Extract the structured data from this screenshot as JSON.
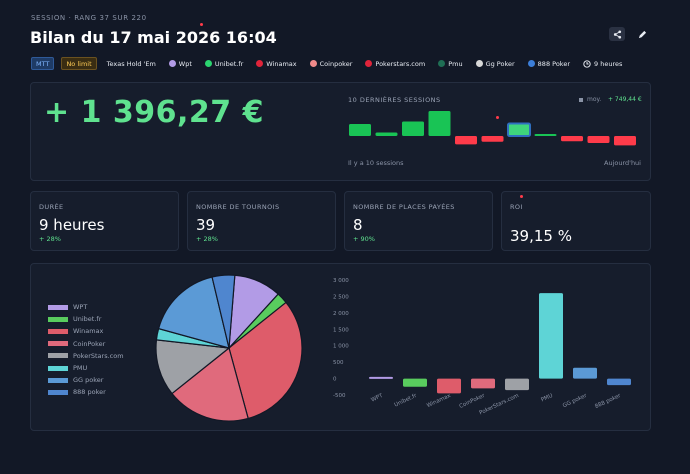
{
  "header": {
    "kicker": "SESSION · RANG 37 SUR 220",
    "title": "Bilan du 17 mai 2026 16:04"
  },
  "tags": {
    "mtt": "MTT",
    "nolimit": "No limit",
    "game": "Texas Hold 'Em",
    "rooms": [
      {
        "label": "Wpt",
        "color": "#b29be6"
      },
      {
        "label": "Unibet.fr",
        "color": "#2bd46f"
      },
      {
        "label": "Winamax",
        "color": "#e0243a"
      },
      {
        "label": "Coinpoker",
        "color": "#f08a8a"
      },
      {
        "label": "Pokerstars.com",
        "color": "#e0243a"
      },
      {
        "label": "Pmu",
        "color": "#1f6e54"
      },
      {
        "label": "Gg Poker",
        "color": "#d8d8d8"
      },
      {
        "label": "888 Poker",
        "color": "#3c7ed8"
      }
    ],
    "duration": "9 heures"
  },
  "summary": {
    "result": "+ 1 396,27 €",
    "sessions_label": "10 DERNIÈRES SESSIONS",
    "avg_label": "moy.",
    "avg_value": "+ 749,44 €",
    "foot_left": "Il y a 10 sessions",
    "foot_right": "Aujourd'hui",
    "bars": [
      {
        "value": 0.48,
        "color": "#19c455"
      },
      {
        "value": 0.14,
        "color": "#19c455"
      },
      {
        "value": 0.58,
        "color": "#19c455"
      },
      {
        "value": 1.0,
        "color": "#19c455"
      },
      {
        "value": -0.42,
        "color": "#ff3b4a"
      },
      {
        "value": -0.29,
        "color": "#ff3b4a"
      },
      {
        "value": 0.5,
        "color": "#3fd57c",
        "current": true
      },
      {
        "value": 0.05,
        "color": "#19c455"
      },
      {
        "value": -0.26,
        "color": "#ff3b4a"
      },
      {
        "value": -0.35,
        "color": "#ff3b4a"
      },
      {
        "value": -0.47,
        "color": "#ff3b4a"
      }
    ]
  },
  "stats": [
    {
      "label": "DURÉE",
      "value": "9 heures",
      "delta": "+ 28%"
    },
    {
      "label": "NOMBRE DE TOURNOIS",
      "value": "39",
      "delta": "+ 28%"
    },
    {
      "label": "NOMBRE DE PLACES PAYÉES",
      "value": "8",
      "delta": "+ 90%"
    },
    {
      "label": "ROI",
      "value": "39,15 %",
      "delta": ""
    }
  ],
  "chart_data": [
    {
      "type": "pie",
      "categories": [
        "WPT",
        "Unibet.fr",
        "Winamax",
        "CoinPoker",
        "PokerStars.com",
        "PMU",
        "GG poker",
        "888 poker"
      ],
      "values": [
        10.5,
        2.5,
        31.5,
        18.5,
        12.5,
        2.5,
        17.0,
        5.0
      ],
      "colors": [
        "#b29be6",
        "#59cc5e",
        "#de5c6a",
        "#e06a7c",
        "#9ea1a6",
        "#5ed4d6",
        "#5b9ad6",
        "#4f86cf"
      ],
      "legend": "left"
    },
    {
      "type": "bar",
      "categories": [
        "WPT",
        "Unibet.fr",
        "Winamax",
        "CoinPoker",
        "PokerStars.com",
        "PMU",
        "GG poker",
        "888 poker"
      ],
      "values": [
        50,
        -250,
        -450,
        -300,
        -350,
        2600,
        330,
        -200
      ],
      "colors": [
        "#b29be6",
        "#59cc5e",
        "#de5c6a",
        "#e06a7c",
        "#9ea1a6",
        "#5ed4d6",
        "#5b9ad6",
        "#4f86cf"
      ],
      "yticks": [
        "3 000",
        "2 500",
        "2 000",
        "1 500",
        "1 000",
        "500",
        "0",
        "-500"
      ],
      "ylim": [
        -500,
        3000
      ],
      "grid": false
    }
  ]
}
